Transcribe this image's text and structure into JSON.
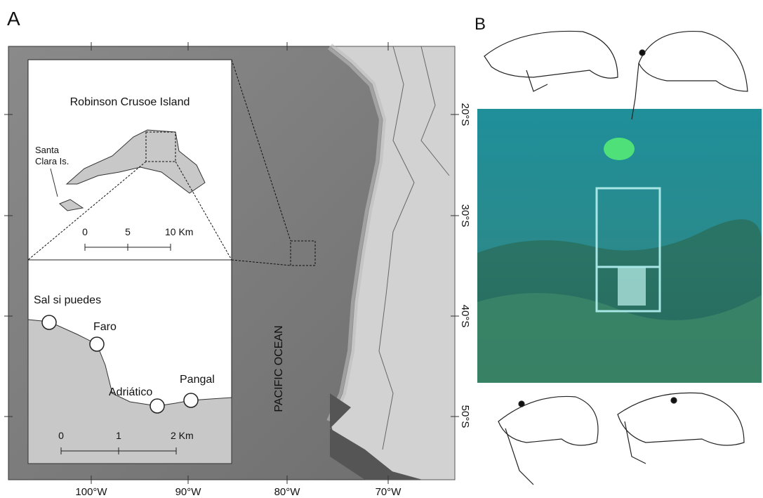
{
  "panels": {
    "a": {
      "label": "A",
      "longitude_ticks": [
        "100°W",
        "90°W",
        "80°W",
        "70°W"
      ],
      "latitude_ticks": [
        "20°S",
        "30°S",
        "40°S",
        "50°S"
      ],
      "ocean_label": "PACIFIC OCEAN",
      "inset_top": {
        "title": "Robinson Crusoe Island",
        "island_label": [
          "Santa",
          "Clara Is."
        ],
        "scale": [
          "0",
          "5",
          "10 Km"
        ]
      },
      "inset_bottom": {
        "sites": [
          "Sal si puedes",
          "Faro",
          "Adriático",
          "Pangal"
        ],
        "scale": [
          "0",
          "1",
          "2 Km"
        ]
      }
    },
    "b": {
      "label": "B"
    }
  }
}
